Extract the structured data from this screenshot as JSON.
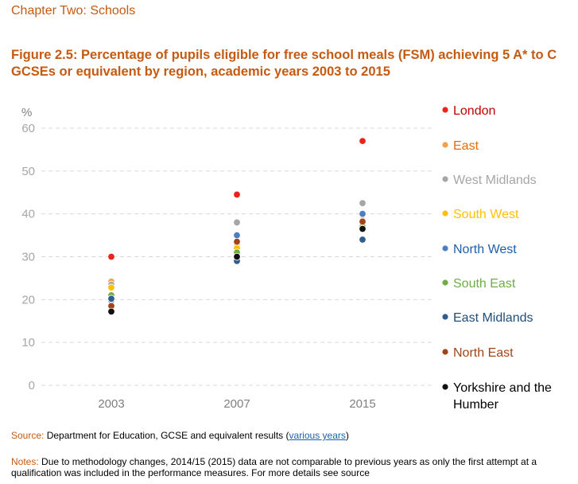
{
  "header": {
    "chapter": "Chapter Two: Schools",
    "figure_title": "Figure 2.5: Percentage of pupils eligible for free school meals (FSM) achieving 5 A* to C GCSEs or equivalent by region, academic years 2003 to 2015"
  },
  "chart_data": {
    "type": "scatter",
    "categories": [
      "2003",
      "2007",
      "2015"
    ],
    "ylabel": "%",
    "ylim": [
      0,
      60
    ],
    "yticks": [
      0,
      10,
      20,
      30,
      40,
      50,
      60
    ],
    "grid": "horizontal dashed",
    "legend_placement": "right",
    "series": [
      {
        "name": "London",
        "color": "#E8251B",
        "text_color": "#C00000",
        "values": [
          30,
          44.5,
          57
        ]
      },
      {
        "name": "East",
        "color": "#F4A14B",
        "text_color": "#E46C0A",
        "values": [
          24.2,
          33,
          38.5
        ]
      },
      {
        "name": "West Midlands",
        "color": "#A6A6A6",
        "text_color": "#A6A6A6",
        "values": [
          23.5,
          38,
          42.5
        ]
      },
      {
        "name": "South West",
        "color": "#FFC000",
        "text_color": "#FFC000",
        "values": [
          22.8,
          32,
          37.5
        ]
      },
      {
        "name": "North West",
        "color": "#4A7FC1",
        "text_color": "#1F5FA8",
        "values": [
          19.8,
          35,
          40
        ]
      },
      {
        "name": "South East",
        "color": "#70AD47",
        "text_color": "#70AD47",
        "values": [
          21,
          31,
          37
        ]
      },
      {
        "name": "East Midlands",
        "color": "#2E5D8E",
        "text_color": "#1F4E79",
        "values": [
          20.2,
          29,
          34
        ]
      },
      {
        "name": "North East",
        "color": "#A0441A",
        "text_color": "#A0441A",
        "values": [
          18.5,
          33.5,
          38.2
        ]
      },
      {
        "name": "Yorkshire and the Humber",
        "color": "#111111",
        "text_color": "#000000",
        "values": [
          17.2,
          30,
          36.5
        ]
      }
    ]
  },
  "footer": {
    "source_label": "Source:",
    "source_text": " Department for Education, GCSE and equivalent results (",
    "source_link": "various years",
    "source_close": ")",
    "notes_label": "Notes:",
    "notes_text": " Due to methodology changes, 2014/15 (2015) data are not comparable to previous years as only the first attempt at a qualification was included in the performance measures. For more details see source"
  }
}
